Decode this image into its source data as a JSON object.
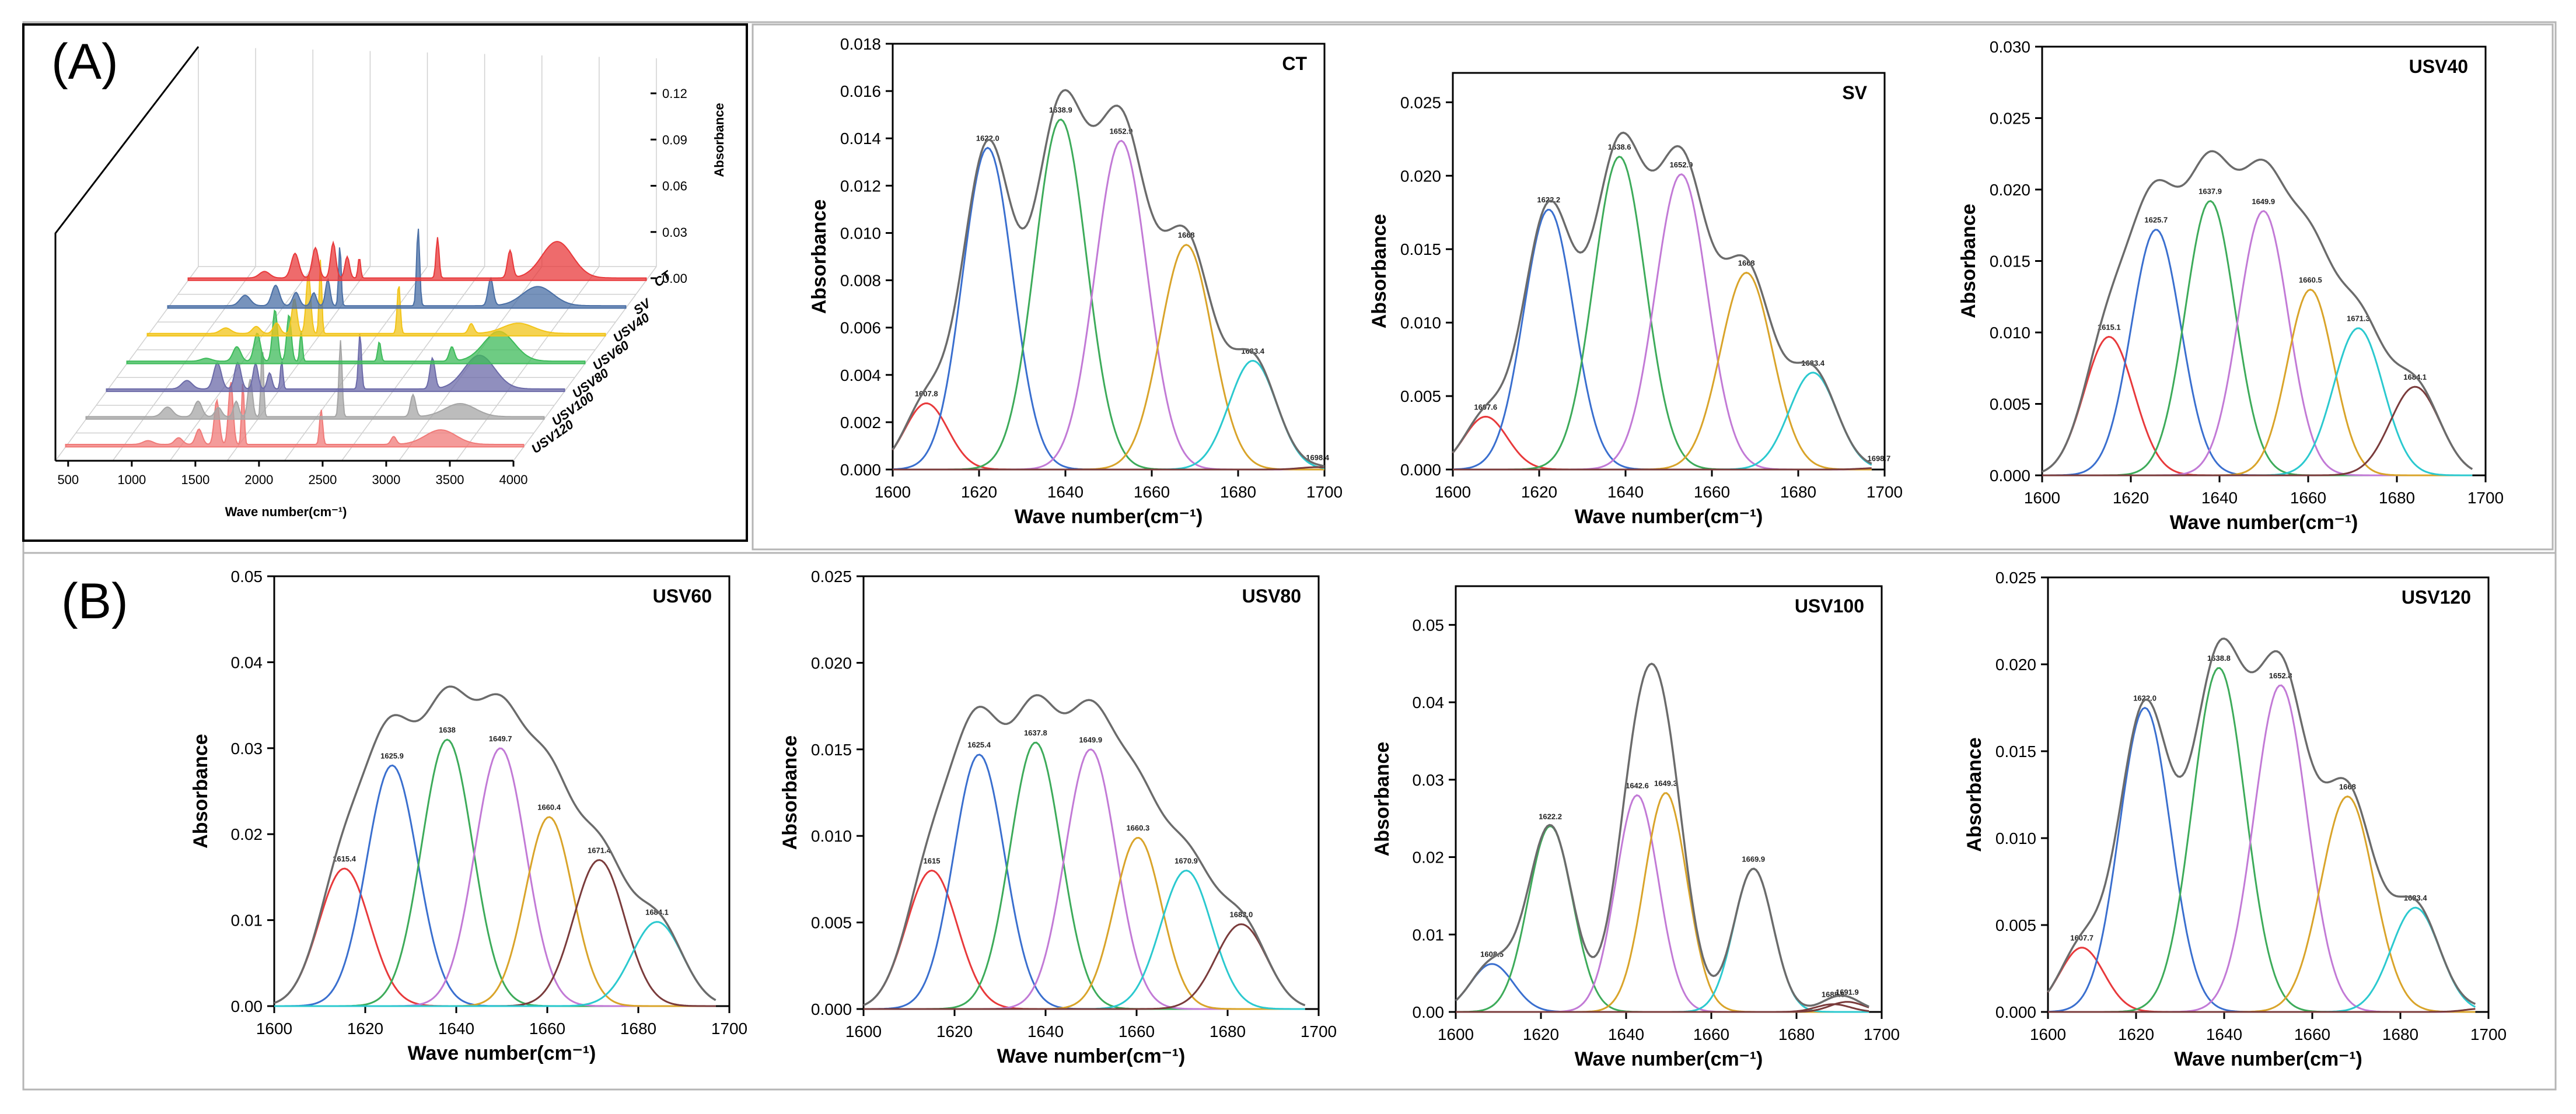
{
  "figure": {
    "panel_a_label": "(A)",
    "panel_b_label": "(B)"
  },
  "overview_3d": {
    "xlabel": "Wave number(cm⁻¹)",
    "zlabel": "Absorbance",
    "x_ticks": [
      "500",
      "1000",
      "1500",
      "2000",
      "2500",
      "3000",
      "3500",
      "4000"
    ],
    "z_ticks": [
      "0.00",
      "0.03",
      "0.06",
      "0.09",
      "0.12"
    ],
    "series_names": [
      "CT",
      "SV",
      "USV40",
      "USV60",
      "USV80",
      "USV100",
      "USV120"
    ],
    "series_colors": [
      "#e8393b",
      "#4a6fa5",
      "#f2c418",
      "#3dbb5a",
      "#6b6aa8",
      "#a5a5a5",
      "#f07a78"
    ]
  },
  "chart_data": [
    {
      "type": "line",
      "title": "CT",
      "xlabel": "Wave number(cm⁻¹)",
      "ylabel": "Absorbance",
      "xlim": [
        1600,
        1700
      ],
      "ylim": [
        0,
        0.018
      ],
      "x_ticks": [
        "1600",
        "1620",
        "1640",
        "1660",
        "1680",
        "1700"
      ],
      "y_ticks": [
        "0.000",
        "0.002",
        "0.004",
        "0.006",
        "0.008",
        "0.010",
        "0.012",
        "0.014",
        "0.016",
        "0.018"
      ],
      "envelope_range": [
        1600,
        1700
      ],
      "peaks": [
        {
          "center": 1607.8,
          "label": "1607.8",
          "height": 0.0028,
          "sigma": 5.0,
          "color": "#e8393b"
        },
        {
          "center": 1622.0,
          "label": "1622.0",
          "height": 0.0136,
          "sigma": 5.8,
          "color": "#3a6fcf"
        },
        {
          "center": 1638.9,
          "label": "1638.9",
          "height": 0.0148,
          "sigma": 6.0,
          "color": "#3dab5a"
        },
        {
          "center": 1652.9,
          "label": "1652.9",
          "height": 0.0139,
          "sigma": 6.0,
          "color": "#c27ad6"
        },
        {
          "center": 1668.0,
          "label": "1668",
          "height": 0.0095,
          "sigma": 6.0,
          "color": "#d9a42a"
        },
        {
          "center": 1683.4,
          "label": "1683.4",
          "height": 0.0046,
          "sigma": 5.5,
          "color": "#2bc9cf"
        },
        {
          "center": 1698.4,
          "label": "1698.4",
          "height": 0.0001,
          "sigma": 4.0,
          "color": "#7a3b3b"
        }
      ]
    },
    {
      "type": "line",
      "title": "SV",
      "xlabel": "Wave number(cm⁻¹)",
      "ylabel": "Absorbance",
      "xlim": [
        1600,
        1700
      ],
      "ylim": [
        0,
        0.027
      ],
      "x_ticks": [
        "1600",
        "1620",
        "1640",
        "1660",
        "1680",
        "1700"
      ],
      "y_ticks": [
        "0.000",
        "0.005",
        "0.010",
        "0.015",
        "0.020",
        "0.025"
      ],
      "envelope_range": [
        1600,
        1697
      ],
      "peaks": [
        {
          "center": 1607.6,
          "label": "1607.6",
          "height": 0.0036,
          "sigma": 5.0,
          "color": "#e8393b"
        },
        {
          "center": 1622.2,
          "label": "1622.2",
          "height": 0.0177,
          "sigma": 5.8,
          "color": "#3a6fcf"
        },
        {
          "center": 1638.6,
          "label": "1638.6",
          "height": 0.0213,
          "sigma": 6.0,
          "color": "#3dab5a"
        },
        {
          "center": 1652.9,
          "label": "1652.9",
          "height": 0.0201,
          "sigma": 6.0,
          "color": "#c27ad6"
        },
        {
          "center": 1668.0,
          "label": "1668",
          "height": 0.0134,
          "sigma": 6.0,
          "color": "#d9a42a"
        },
        {
          "center": 1683.4,
          "label": "1683.4",
          "height": 0.0066,
          "sigma": 5.5,
          "color": "#2bc9cf"
        },
        {
          "center": 1698.7,
          "label": "1698.7",
          "height": 0.0001,
          "sigma": 4.0,
          "color": "#7a3b3b"
        }
      ]
    },
    {
      "type": "line",
      "title": "USV40",
      "xlabel": "Wave number(cm⁻¹)",
      "ylabel": "Absorbance",
      "xlim": [
        1600,
        1700
      ],
      "ylim": [
        0,
        0.03
      ],
      "x_ticks": [
        "1600",
        "1620",
        "1640",
        "1660",
        "1680",
        "1700"
      ],
      "y_ticks": [
        "0.000",
        "0.005",
        "0.010",
        "0.015",
        "0.020",
        "0.025",
        "0.030"
      ],
      "envelope_range": [
        1600,
        1697
      ],
      "peaks": [
        {
          "center": 1615.1,
          "label": "1615.1",
          "height": 0.0097,
          "sigma": 5.6,
          "color": "#e8393b"
        },
        {
          "center": 1625.7,
          "label": "1625.7",
          "height": 0.0172,
          "sigma": 5.6,
          "color": "#3a6fcf"
        },
        {
          "center": 1637.9,
          "label": "1637.9",
          "height": 0.0192,
          "sigma": 5.6,
          "color": "#3dab5a"
        },
        {
          "center": 1649.9,
          "label": "1649.9",
          "height": 0.0185,
          "sigma": 5.6,
          "color": "#c27ad6"
        },
        {
          "center": 1660.5,
          "label": "1660.5",
          "height": 0.013,
          "sigma": 5.2,
          "color": "#d9a42a"
        },
        {
          "center": 1671.3,
          "label": "1671.3",
          "height": 0.0103,
          "sigma": 5.6,
          "color": "#2bc9cf"
        },
        {
          "center": 1684.1,
          "label": "1684.1",
          "height": 0.0062,
          "sigma": 5.6,
          "color": "#7a3b3b"
        }
      ]
    },
    {
      "type": "line",
      "title": "USV60",
      "xlabel": "Wave number(cm⁻¹)",
      "ylabel": "Absorbance",
      "xlim": [
        1600,
        1700
      ],
      "ylim": [
        0,
        0.05
      ],
      "x_ticks": [
        "1600",
        "1620",
        "1640",
        "1660",
        "1680",
        "1700"
      ],
      "y_ticks": [
        "0.00",
        "0.01",
        "0.02",
        "0.03",
        "0.04",
        "0.05"
      ],
      "envelope_range": [
        1600,
        1697
      ],
      "peaks": [
        {
          "center": 1615.4,
          "label": "1615.4",
          "height": 0.016,
          "sigma": 5.6,
          "color": "#e8393b"
        },
        {
          "center": 1625.9,
          "label": "1625.9",
          "height": 0.028,
          "sigma": 5.6,
          "color": "#3a6fcf"
        },
        {
          "center": 1638.0,
          "label": "1638",
          "height": 0.031,
          "sigma": 5.6,
          "color": "#3dab5a"
        },
        {
          "center": 1649.7,
          "label": "1649.7",
          "height": 0.03,
          "sigma": 5.6,
          "color": "#c27ad6"
        },
        {
          "center": 1660.4,
          "label": "1660.4",
          "height": 0.022,
          "sigma": 5.2,
          "color": "#d9a42a"
        },
        {
          "center": 1671.4,
          "label": "1671.4",
          "height": 0.017,
          "sigma": 5.6,
          "color": "#7a3b3b"
        },
        {
          "center": 1684.1,
          "label": "1684.1",
          "height": 0.0098,
          "sigma": 5.6,
          "color": "#2bc9cf"
        }
      ]
    },
    {
      "type": "line",
      "title": "USV80",
      "xlabel": "Wave number(cm⁻¹)",
      "ylabel": "Absorbance",
      "xlim": [
        1600,
        1700
      ],
      "ylim": [
        0,
        0.025
      ],
      "x_ticks": [
        "1600",
        "1620",
        "1640",
        "1660",
        "1680",
        "1700"
      ],
      "y_ticks": [
        "0.000",
        "0.005",
        "0.010",
        "0.015",
        "0.020",
        "0.025"
      ],
      "envelope_range": [
        1600,
        1697
      ],
      "peaks": [
        {
          "center": 1615.0,
          "label": "1615",
          "height": 0.008,
          "sigma": 5.6,
          "color": "#e8393b"
        },
        {
          "center": 1625.4,
          "label": "1625.4",
          "height": 0.0147,
          "sigma": 5.6,
          "color": "#3a6fcf"
        },
        {
          "center": 1637.8,
          "label": "1637.8",
          "height": 0.0154,
          "sigma": 5.6,
          "color": "#3dab5a"
        },
        {
          "center": 1649.9,
          "label": "1649.9",
          "height": 0.015,
          "sigma": 5.6,
          "color": "#c27ad6"
        },
        {
          "center": 1660.3,
          "label": "1660.3",
          "height": 0.0099,
          "sigma": 5.2,
          "color": "#d9a42a"
        },
        {
          "center": 1670.9,
          "label": "1670.9",
          "height": 0.008,
          "sigma": 5.6,
          "color": "#2bc9cf"
        },
        {
          "center": 1683.0,
          "label": "1683.0",
          "height": 0.0049,
          "sigma": 5.6,
          "color": "#7a3b3b"
        }
      ]
    },
    {
      "type": "line",
      "title": "USV100",
      "xlabel": "Wave number(cm⁻¹)",
      "ylabel": "Absorbance",
      "xlim": [
        1600,
        1700
      ],
      "ylim": [
        0,
        0.055
      ],
      "x_ticks": [
        "1600",
        "1620",
        "1640",
        "1660",
        "1680",
        "1700"
      ],
      "y_ticks": [
        "0.00",
        "0.01",
        "0.02",
        "0.03",
        "0.04",
        "0.05"
      ],
      "envelope_range": [
        1600,
        1697
      ],
      "peaks": [
        {
          "center": 1608.5,
          "label": "1608.5",
          "height": 0.0062,
          "sigma": 5.0,
          "color": "#3a6fcf"
        },
        {
          "center": 1622.2,
          "label": "1622.2",
          "height": 0.024,
          "sigma": 5.2,
          "color": "#3dab5a"
        },
        {
          "center": 1642.6,
          "label": "1642.6",
          "height": 0.028,
          "sigma": 5.0,
          "color": "#c27ad6"
        },
        {
          "center": 1649.3,
          "label": "1649.3",
          "height": 0.0283,
          "sigma": 5.0,
          "color": "#d9a42a"
        },
        {
          "center": 1669.9,
          "label": "1669.9",
          "height": 0.0185,
          "sigma": 4.6,
          "color": "#2bc9cf"
        },
        {
          "center": 1688.6,
          "label": "1688.6",
          "height": 0.001,
          "sigma": 4.0,
          "color": "#7a3b3b"
        },
        {
          "center": 1691.9,
          "label": "1691.9",
          "height": 0.0013,
          "sigma": 4.0,
          "color": "#7a3b3b"
        }
      ]
    },
    {
      "type": "line",
      "title": "USV120",
      "xlabel": "Wave number(cm⁻¹)",
      "ylabel": "Absorbance",
      "xlim": [
        1600,
        1700
      ],
      "ylim": [
        0,
        0.025
      ],
      "x_ticks": [
        "1600",
        "1620",
        "1640",
        "1660",
        "1680",
        "1700"
      ],
      "y_ticks": [
        "0.000",
        "0.005",
        "0.010",
        "0.015",
        "0.020",
        "0.025"
      ],
      "envelope_range": [
        1600,
        1697
      ],
      "peaks": [
        {
          "center": 1607.7,
          "label": "1607.7",
          "height": 0.0037,
          "sigma": 5.0,
          "color": "#e8393b"
        },
        {
          "center": 1622.0,
          "label": "1622.0",
          "height": 0.0175,
          "sigma": 5.8,
          "color": "#3a6fcf"
        },
        {
          "center": 1638.8,
          "label": "1638.8",
          "height": 0.0198,
          "sigma": 6.0,
          "color": "#3dab5a"
        },
        {
          "center": 1652.8,
          "label": "1652.8",
          "height": 0.0188,
          "sigma": 6.0,
          "color": "#c27ad6"
        },
        {
          "center": 1668.0,
          "label": "1668",
          "height": 0.0124,
          "sigma": 6.0,
          "color": "#d9a42a"
        },
        {
          "center": 1683.4,
          "label": "1683.4",
          "height": 0.006,
          "sigma": 5.5,
          "color": "#2bc9cf"
        },
        {
          "center": 1699.0,
          "label": "",
          "height": 0.0002,
          "sigma": 4.0,
          "color": "#7a3b3b"
        }
      ]
    }
  ]
}
